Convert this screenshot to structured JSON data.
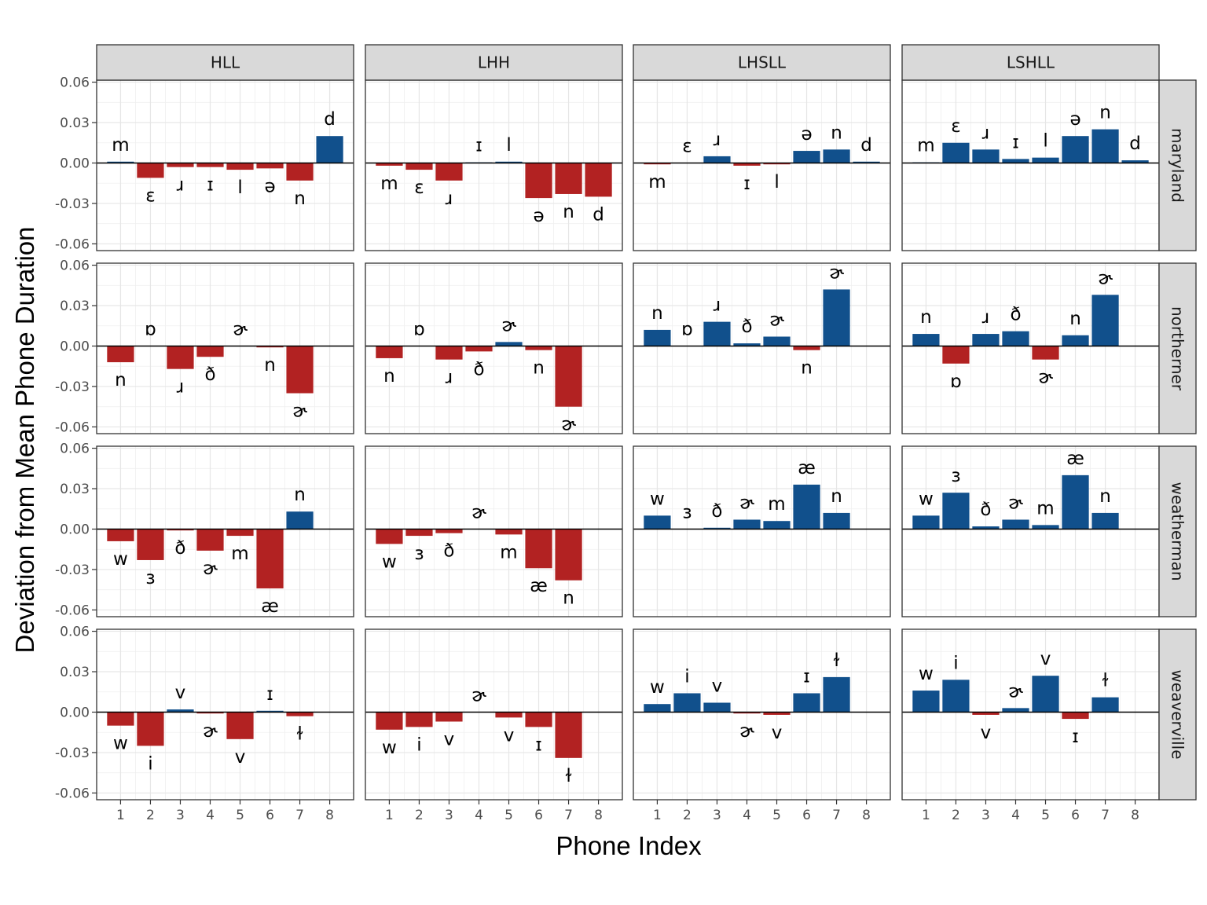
{
  "chart_data": {
    "type": "bar",
    "facet_columns": [
      "HLL",
      "LHH",
      "LHSLL",
      "LSHLL"
    ],
    "facet_rows": [
      "maryland",
      "northerner",
      "weatherman",
      "weaverville"
    ],
    "xlabel": "Phone Index",
    "ylabel": "Deviation from Mean Phone Duration",
    "x_ticks": [
      "1",
      "2",
      "3",
      "4",
      "5",
      "6",
      "7",
      "8"
    ],
    "y_ticks": [
      "0.06",
      "0.03",
      "0.00",
      "-0.03",
      "-0.06"
    ],
    "ylim": [
      -0.065,
      0.0615
    ],
    "grid": true,
    "colors": {
      "positive": "#11508c",
      "negative": "#b22222"
    },
    "panels": [
      {
        "row": "maryland",
        "col": "HLL",
        "bars": [
          {
            "x": 1,
            "phone": "m",
            "value": 0.001
          },
          {
            "x": 2,
            "phone": "ɛ",
            "value": -0.011
          },
          {
            "x": 3,
            "phone": "ɹ",
            "value": -0.003
          },
          {
            "x": 4,
            "phone": "ɪ",
            "value": -0.003
          },
          {
            "x": 5,
            "phone": "l",
            "value": -0.005
          },
          {
            "x": 6,
            "phone": "ə",
            "value": -0.004
          },
          {
            "x": 7,
            "phone": "n",
            "value": -0.013
          },
          {
            "x": 8,
            "phone": "d",
            "value": 0.02
          }
        ]
      },
      {
        "row": "maryland",
        "col": "LHH",
        "bars": [
          {
            "x": 1,
            "phone": "m",
            "value": -0.002
          },
          {
            "x": 2,
            "phone": "ɛ",
            "value": -0.005
          },
          {
            "x": 3,
            "phone": "ɹ",
            "value": -0.013
          },
          {
            "x": 4,
            "phone": "ɪ",
            "value": 0.0005
          },
          {
            "x": 5,
            "phone": "l",
            "value": 0.001
          },
          {
            "x": 6,
            "phone": "ə",
            "value": -0.026
          },
          {
            "x": 7,
            "phone": "n",
            "value": -0.023
          },
          {
            "x": 8,
            "phone": "d",
            "value": -0.025
          }
        ]
      },
      {
        "row": "maryland",
        "col": "LHSLL",
        "bars": [
          {
            "x": 1,
            "phone": "m",
            "value": -0.001
          },
          {
            "x": 2,
            "phone": "ɛ",
            "value": 0.0
          },
          {
            "x": 3,
            "phone": "ɹ",
            "value": 0.005
          },
          {
            "x": 4,
            "phone": "ɪ",
            "value": -0.002
          },
          {
            "x": 5,
            "phone": "l",
            "value": -0.001
          },
          {
            "x": 6,
            "phone": "ə",
            "value": 0.009
          },
          {
            "x": 7,
            "phone": "n",
            "value": 0.01
          },
          {
            "x": 8,
            "phone": "d",
            "value": 0.001
          }
        ]
      },
      {
        "row": "maryland",
        "col": "LSHLL",
        "bars": [
          {
            "x": 1,
            "phone": "m",
            "value": 0.0005
          },
          {
            "x": 2,
            "phone": "ɛ",
            "value": 0.015
          },
          {
            "x": 3,
            "phone": "ɹ",
            "value": 0.01
          },
          {
            "x": 4,
            "phone": "ɪ",
            "value": 0.003
          },
          {
            "x": 5,
            "phone": "l",
            "value": 0.004
          },
          {
            "x": 6,
            "phone": "ə",
            "value": 0.02
          },
          {
            "x": 7,
            "phone": "n",
            "value": 0.025
          },
          {
            "x": 8,
            "phone": "d",
            "value": 0.002
          }
        ]
      },
      {
        "row": "northerner",
        "col": "HLL",
        "bars": [
          {
            "x": 1,
            "phone": "n",
            "value": -0.012
          },
          {
            "x": 2,
            "phone": "ɒ",
            "value": 0.0
          },
          {
            "x": 3,
            "phone": "ɹ",
            "value": -0.017
          },
          {
            "x": 4,
            "phone": "ð",
            "value": -0.008
          },
          {
            "x": 5,
            "phone": "ɚ",
            "value": 0.0
          },
          {
            "x": 6,
            "phone": "n",
            "value": -0.001
          },
          {
            "x": 7,
            "phone": "ɚ",
            "value": -0.035
          }
        ]
      },
      {
        "row": "northerner",
        "col": "LHH",
        "bars": [
          {
            "x": 1,
            "phone": "n",
            "value": -0.009
          },
          {
            "x": 2,
            "phone": "ɒ",
            "value": 0.0
          },
          {
            "x": 3,
            "phone": "ɹ",
            "value": -0.01
          },
          {
            "x": 4,
            "phone": "ð",
            "value": -0.004
          },
          {
            "x": 5,
            "phone": "ɚ",
            "value": 0.003
          },
          {
            "x": 6,
            "phone": "n",
            "value": -0.003
          },
          {
            "x": 7,
            "phone": "ɚ",
            "value": -0.045
          }
        ]
      },
      {
        "row": "northerner",
        "col": "LHSLL",
        "bars": [
          {
            "x": 1,
            "phone": "n",
            "value": 0.012
          },
          {
            "x": 2,
            "phone": "ɒ",
            "value": 0.0
          },
          {
            "x": 3,
            "phone": "ɹ",
            "value": 0.018
          },
          {
            "x": 4,
            "phone": "ð",
            "value": 0.002
          },
          {
            "x": 5,
            "phone": "ɚ",
            "value": 0.007
          },
          {
            "x": 6,
            "phone": "n",
            "value": -0.003
          },
          {
            "x": 7,
            "phone": "ɚ",
            "value": 0.042
          }
        ]
      },
      {
        "row": "northerner",
        "col": "LSHLL",
        "bars": [
          {
            "x": 1,
            "phone": "n",
            "value": 0.009
          },
          {
            "x": 2,
            "phone": "ɒ",
            "value": -0.013
          },
          {
            "x": 3,
            "phone": "ɹ",
            "value": 0.009
          },
          {
            "x": 4,
            "phone": "ð",
            "value": 0.011
          },
          {
            "x": 5,
            "phone": "ɚ",
            "value": -0.01
          },
          {
            "x": 6,
            "phone": "n",
            "value": 0.008
          },
          {
            "x": 7,
            "phone": "ɚ",
            "value": 0.038
          }
        ]
      },
      {
        "row": "weatherman",
        "col": "HLL",
        "bars": [
          {
            "x": 1,
            "phone": "w",
            "value": -0.009
          },
          {
            "x": 2,
            "phone": "ɜ",
            "value": -0.023
          },
          {
            "x": 3,
            "phone": "ð",
            "value": -0.001
          },
          {
            "x": 4,
            "phone": "ɚ",
            "value": -0.016
          },
          {
            "x": 5,
            "phone": "m",
            "value": -0.005
          },
          {
            "x": 6,
            "phone": "æ",
            "value": -0.044
          },
          {
            "x": 7,
            "phone": "n",
            "value": 0.013
          }
        ]
      },
      {
        "row": "weatherman",
        "col": "LHH",
        "bars": [
          {
            "x": 1,
            "phone": "w",
            "value": -0.011
          },
          {
            "x": 2,
            "phone": "ɜ",
            "value": -0.005
          },
          {
            "x": 3,
            "phone": "ð",
            "value": -0.003
          },
          {
            "x": 4,
            "phone": "ɚ",
            "value": 0.0
          },
          {
            "x": 5,
            "phone": "m",
            "value": -0.004
          },
          {
            "x": 6,
            "phone": "æ",
            "value": -0.029
          },
          {
            "x": 7,
            "phone": "n",
            "value": -0.038
          }
        ]
      },
      {
        "row": "weatherman",
        "col": "LHSLL",
        "bars": [
          {
            "x": 1,
            "phone": "w",
            "value": 0.01
          },
          {
            "x": 2,
            "phone": "ɜ",
            "value": 0.0
          },
          {
            "x": 3,
            "phone": "ð",
            "value": 0.001
          },
          {
            "x": 4,
            "phone": "ɚ",
            "value": 0.007
          },
          {
            "x": 5,
            "phone": "m",
            "value": 0.006
          },
          {
            "x": 6,
            "phone": "æ",
            "value": 0.033
          },
          {
            "x": 7,
            "phone": "n",
            "value": 0.012
          }
        ]
      },
      {
        "row": "weatherman",
        "col": "LSHLL",
        "bars": [
          {
            "x": 1,
            "phone": "w",
            "value": 0.01
          },
          {
            "x": 2,
            "phone": "ɜ",
            "value": 0.027
          },
          {
            "x": 3,
            "phone": "ð",
            "value": 0.002
          },
          {
            "x": 4,
            "phone": "ɚ",
            "value": 0.007
          },
          {
            "x": 5,
            "phone": "m",
            "value": 0.003
          },
          {
            "x": 6,
            "phone": "æ",
            "value": 0.04
          },
          {
            "x": 7,
            "phone": "n",
            "value": 0.012
          }
        ]
      },
      {
        "row": "weaverville",
        "col": "HLL",
        "bars": [
          {
            "x": 1,
            "phone": "w",
            "value": -0.01
          },
          {
            "x": 2,
            "phone": "i",
            "value": -0.025
          },
          {
            "x": 3,
            "phone": "v",
            "value": 0.002
          },
          {
            "x": 4,
            "phone": "ɚ",
            "value": -0.001
          },
          {
            "x": 5,
            "phone": "v",
            "value": -0.02
          },
          {
            "x": 6,
            "phone": "ɪ",
            "value": 0.001
          },
          {
            "x": 7,
            "phone": "ɫ",
            "value": -0.003
          }
        ]
      },
      {
        "row": "weaverville",
        "col": "LHH",
        "bars": [
          {
            "x": 1,
            "phone": "w",
            "value": -0.013
          },
          {
            "x": 2,
            "phone": "i",
            "value": -0.011
          },
          {
            "x": 3,
            "phone": "v",
            "value": -0.007
          },
          {
            "x": 4,
            "phone": "ɚ",
            "value": 0.0
          },
          {
            "x": 5,
            "phone": "v",
            "value": -0.004
          },
          {
            "x": 6,
            "phone": "ɪ",
            "value": -0.011
          },
          {
            "x": 7,
            "phone": "ɫ",
            "value": -0.034
          }
        ]
      },
      {
        "row": "weaverville",
        "col": "LHSLL",
        "bars": [
          {
            "x": 1,
            "phone": "w",
            "value": 0.006
          },
          {
            "x": 2,
            "phone": "i",
            "value": 0.014
          },
          {
            "x": 3,
            "phone": "v",
            "value": 0.007
          },
          {
            "x": 4,
            "phone": "ɚ",
            "value": -0.001
          },
          {
            "x": 5,
            "phone": "v",
            "value": -0.002
          },
          {
            "x": 6,
            "phone": "ɪ",
            "value": 0.014
          },
          {
            "x": 7,
            "phone": "ɫ",
            "value": 0.026
          }
        ]
      },
      {
        "row": "weaverville",
        "col": "LSHLL",
        "bars": [
          {
            "x": 1,
            "phone": "w",
            "value": 0.016
          },
          {
            "x": 2,
            "phone": "i",
            "value": 0.024
          },
          {
            "x": 3,
            "phone": "v",
            "value": -0.002
          },
          {
            "x": 4,
            "phone": "ɚ",
            "value": 0.003
          },
          {
            "x": 5,
            "phone": "v",
            "value": 0.027
          },
          {
            "x": 6,
            "phone": "ɪ",
            "value": -0.005
          },
          {
            "x": 7,
            "phone": "ɫ",
            "value": 0.011
          }
        ]
      }
    ]
  }
}
